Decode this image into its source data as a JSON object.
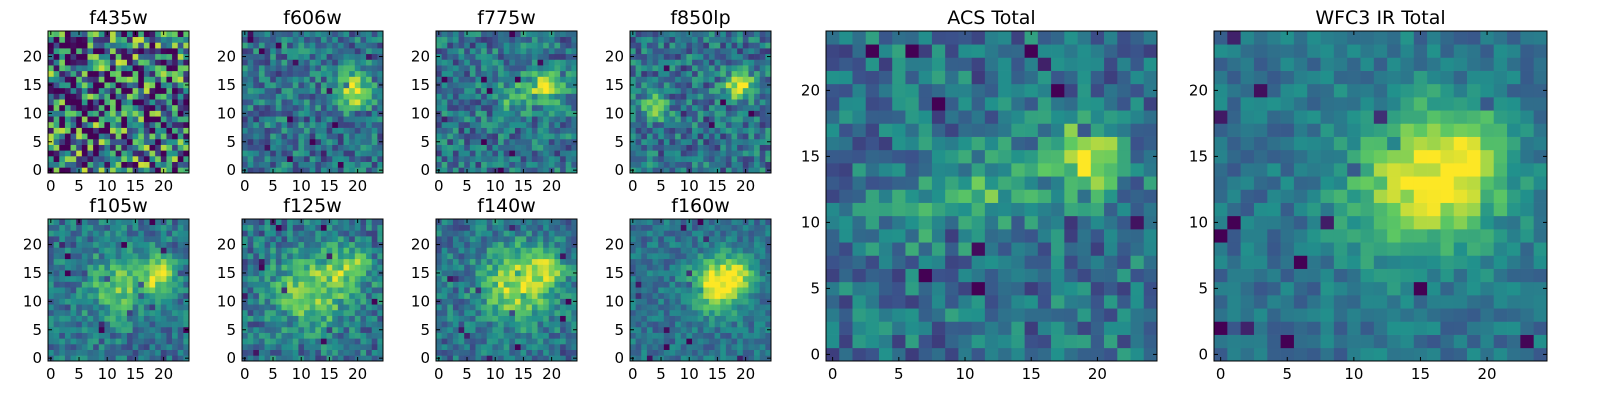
{
  "chart_data": [
    {
      "type": "heatmap",
      "title": "f435w",
      "colormap": "viridis",
      "xlim": [
        -0.5,
        24.5
      ],
      "ylim": [
        -0.5,
        24.5
      ],
      "xticks": [
        0,
        5,
        10,
        15,
        20
      ],
      "yticks": [
        0,
        5,
        10,
        15,
        20
      ],
      "bright_sources": [],
      "noise_level": 0.55
    },
    {
      "type": "heatmap",
      "title": "f606w",
      "colormap": "viridis",
      "xlim": [
        -0.5,
        24.5
      ],
      "ylim": [
        -0.5,
        24.5
      ],
      "xticks": [
        0,
        5,
        10,
        15,
        20
      ],
      "yticks": [
        0,
        5,
        10,
        15,
        20
      ],
      "bright_sources": [
        {
          "x": 19,
          "y": 14,
          "amplitude": 0.6,
          "sigma": 2.2
        }
      ],
      "noise_level": 0.22
    },
    {
      "type": "heatmap",
      "title": "f775w",
      "colormap": "viridis",
      "xlim": [
        -0.5,
        24.5
      ],
      "ylim": [
        -0.5,
        24.5
      ],
      "xticks": [
        0,
        5,
        10,
        15,
        20
      ],
      "yticks": [
        0,
        5,
        10,
        15,
        20
      ],
      "bright_sources": [
        {
          "x": 19,
          "y": 15,
          "amplitude": 0.6,
          "sigma": 2.0
        },
        {
          "x": 13,
          "y": 13,
          "amplitude": 0.25,
          "sigma": 2.0
        }
      ],
      "noise_level": 0.22
    },
    {
      "type": "heatmap",
      "title": "f850lp",
      "colormap": "viridis",
      "xlim": [
        -0.5,
        24.5
      ],
      "ylim": [
        -0.5,
        24.5
      ],
      "xticks": [
        0,
        5,
        10,
        15,
        20
      ],
      "yticks": [
        0,
        5,
        10,
        15,
        20
      ],
      "bright_sources": [
        {
          "x": 19,
          "y": 15,
          "amplitude": 0.6,
          "sigma": 1.8
        },
        {
          "x": 4,
          "y": 11,
          "amplitude": 0.45,
          "sigma": 1.5
        }
      ],
      "noise_level": 0.22
    },
    {
      "type": "heatmap",
      "title": "f105w",
      "colormap": "viridis",
      "xlim": [
        -0.5,
        24.5
      ],
      "ylim": [
        -0.5,
        24.5
      ],
      "xticks": [
        0,
        5,
        10,
        15,
        20
      ],
      "yticks": [
        0,
        5,
        10,
        15,
        20
      ],
      "bright_sources": [
        {
          "x": 19,
          "y": 15,
          "amplitude": 0.55,
          "sigma": 2.2
        },
        {
          "x": 12,
          "y": 13,
          "amplitude": 0.35,
          "sigma": 4.0
        }
      ],
      "noise_level": 0.18
    },
    {
      "type": "heatmap",
      "title": "f125w",
      "colormap": "viridis",
      "xlim": [
        -0.5,
        24.5
      ],
      "ylim": [
        -0.5,
        24.5
      ],
      "xticks": [
        0,
        5,
        10,
        15,
        20
      ],
      "yticks": [
        0,
        5,
        10,
        15,
        20
      ],
      "bright_sources": [
        {
          "x": 12,
          "y": 12,
          "amplitude": 0.45,
          "sigma": 4.5
        },
        {
          "x": 19,
          "y": 16,
          "amplitude": 0.35,
          "sigma": 2.5
        }
      ],
      "noise_level": 0.2
    },
    {
      "type": "heatmap",
      "title": "f140w",
      "colormap": "viridis",
      "xlim": [
        -0.5,
        24.5
      ],
      "ylim": [
        -0.5,
        24.5
      ],
      "xticks": [
        0,
        5,
        10,
        15,
        20
      ],
      "yticks": [
        0,
        5,
        10,
        15,
        20
      ],
      "bright_sources": [
        {
          "x": 14,
          "y": 13,
          "amplitude": 0.5,
          "sigma": 4.5
        },
        {
          "x": 19,
          "y": 16,
          "amplitude": 0.3,
          "sigma": 2.5
        }
      ],
      "noise_level": 0.18
    },
    {
      "type": "heatmap",
      "title": "f160w",
      "colormap": "viridis",
      "xlim": [
        -0.5,
        24.5
      ],
      "ylim": [
        -0.5,
        24.5
      ],
      "xticks": [
        0,
        5,
        10,
        15,
        20
      ],
      "yticks": [
        0,
        5,
        10,
        15,
        20
      ],
      "bright_sources": [
        {
          "x": 15,
          "y": 13,
          "amplitude": 0.65,
          "sigma": 3.2
        },
        {
          "x": 19,
          "y": 15,
          "amplitude": 0.3,
          "sigma": 2.0
        }
      ],
      "noise_level": 0.14
    },
    {
      "type": "heatmap",
      "title": "ACS Total",
      "colormap": "viridis",
      "xlim": [
        -0.5,
        24.5
      ],
      "ylim": [
        -0.5,
        24.5
      ],
      "xticks": [
        0,
        5,
        10,
        15,
        20
      ],
      "yticks": [
        0,
        5,
        10,
        15,
        20
      ],
      "bright_sources": [
        {
          "x": 19,
          "y": 15,
          "amplitude": 0.55,
          "sigma": 2.0
        },
        {
          "x": 12,
          "y": 12,
          "amplitude": 0.3,
          "sigma": 2.2
        },
        {
          "x": 6,
          "y": 11,
          "amplitude": 0.2,
          "sigma": 2.0
        }
      ],
      "noise_level": 0.2
    },
    {
      "type": "heatmap",
      "title": "WFC3 IR Total",
      "colormap": "viridis",
      "xlim": [
        -0.5,
        24.5
      ],
      "ylim": [
        -0.5,
        24.5
      ],
      "xticks": [
        0,
        5,
        10,
        15,
        20
      ],
      "yticks": [
        0,
        5,
        10,
        15,
        20
      ],
      "bright_sources": [
        {
          "x": 15,
          "y": 13,
          "amplitude": 0.55,
          "sigma": 4.0
        },
        {
          "x": 19,
          "y": 15,
          "amplitude": 0.3,
          "sigma": 2.2
        }
      ],
      "noise_level": 0.12
    }
  ],
  "colors": {
    "viridis_stops": [
      "#440154",
      "#3b528b",
      "#21918c",
      "#5ec962",
      "#fde725"
    ],
    "axis": "#000000"
  }
}
